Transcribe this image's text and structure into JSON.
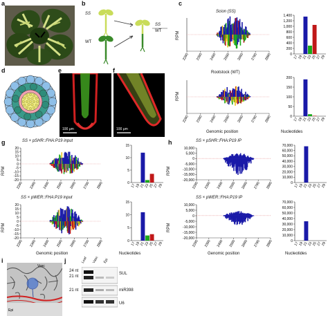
{
  "panels": {
    "a": "a",
    "b": "b",
    "c": "c",
    "d": "d",
    "e": "e",
    "f": "f",
    "g": "g",
    "h": "h",
    "i": "i",
    "j": "j"
  },
  "b": {
    "ss": "SS",
    "wt": "WT",
    "graft_top": "SS",
    "graft_bottom": "WT"
  },
  "c": {
    "title_top": "Scion (SS)",
    "title_bottom": "Rootstock (WT)",
    "xlabel": "Genomic position",
    "ylabel": "RPM",
    "hist_xlabel": "Nucleotides"
  },
  "e": {
    "scale": "100 μm"
  },
  "f": {
    "scale": "100 μm"
  },
  "g": {
    "title_top": "SS × pSHR::FHA:P19 input",
    "title_bottom": "SS × pWER::FHA:P19 input",
    "xlabel": "Genomic position",
    "ylabel": "RPM",
    "hist_xlabel": "Nucleotides"
  },
  "h": {
    "title_top": "SS × pSHR::FHA:P19 IP",
    "title_bottom": "SS × pWER::FHA:P19 IP",
    "xlabel": "Genomic position",
    "ylabel": "RPM",
    "hist_xlabel": "Nucleotides"
  },
  "i": {
    "vasc": "Vasc",
    "epi": "Epi"
  },
  "j": {
    "lanes": [
      "Leaf",
      "Vasc",
      "Epi"
    ],
    "size_24": "24 nt",
    "size_21": "21 nt",
    "size_21b": "21 nt",
    "probe1": "SUL",
    "probe2": "miR398",
    "probe3": "U6"
  },
  "chart_data": [
    {
      "type": "area",
      "title": "Scion (SS)",
      "xlabel": "Genomic position",
      "ylabel": "RPM",
      "xlim": [
        2290,
        2890
      ],
      "x_ticks": [
        2290,
        2390,
        2490,
        2590,
        2690,
        2790,
        2890
      ]
    },
    {
      "type": "bar",
      "categories": [
        "17",
        "19",
        "21",
        "23",
        "25",
        "27",
        "29"
      ],
      "series": [
        {
          "color": "#1a1aa8",
          "values": [
            0,
            0,
            1350,
            0,
            0,
            0,
            0
          ]
        },
        {
          "color": "#1aa81a",
          "values": [
            0,
            0,
            0,
            300,
            0,
            0,
            0
          ]
        },
        {
          "color": "#c01818",
          "values": [
            0,
            0,
            0,
            0,
            1050,
            0,
            0
          ]
        }
      ],
      "xlabel": "Nucleotides",
      "ylabel": "RPM",
      "ylim": [
        0,
        1400
      ],
      "y_ticks": [
        0,
        200,
        400,
        600,
        800,
        1000,
        1200,
        1400
      ]
    },
    {
      "type": "area",
      "title": "Rootstock (WT)",
      "xlabel": "Genomic position",
      "ylabel": "RPM",
      "xlim": [
        2290,
        2890
      ],
      "x_ticks": [
        2290,
        2390,
        2490,
        2590,
        2690,
        2790,
        2890
      ]
    },
    {
      "type": "bar",
      "categories": [
        "17",
        "19",
        "21",
        "23",
        "25",
        "27",
        "29"
      ],
      "series": [
        {
          "color": "#1a1aa8",
          "values": [
            0,
            0,
            190,
            0,
            0,
            0,
            0
          ]
        },
        {
          "color": "#1aa81a",
          "values": [
            0,
            0,
            0,
            10,
            0,
            0,
            0
          ]
        },
        {
          "color": "#c01818",
          "values": [
            0,
            0,
            0,
            0,
            2,
            0,
            0
          ]
        }
      ],
      "xlabel": "Nucleotides",
      "ylabel": "RPM",
      "ylim": [
        0,
        200
      ],
      "y_ticks": [
        0,
        50,
        100,
        150,
        200
      ]
    },
    {
      "type": "area",
      "title": "SS × pSHR::FHA:P19 input",
      "ylabel": "RPM",
      "ylim": [
        -20,
        20
      ],
      "y_ticks": [
        20,
        15,
        10,
        5,
        0,
        -5,
        -10,
        -15,
        -20
      ],
      "xlim": [
        2290,
        2890
      ],
      "x_ticks": [
        2290,
        2390,
        2490,
        2590,
        2690,
        2790,
        2890
      ]
    },
    {
      "type": "bar",
      "categories": [
        "17",
        "19",
        "21",
        "23",
        "25",
        "27",
        "29"
      ],
      "series": [
        {
          "color": "#1a1aa8",
          "values": [
            0,
            0,
            12,
            0,
            0,
            0,
            0
          ]
        },
        {
          "color": "#1aa81a",
          "values": [
            0,
            0,
            0,
            1,
            0,
            0,
            0
          ]
        },
        {
          "color": "#c01818",
          "values": [
            0,
            0,
            0,
            0,
            3.5,
            0,
            0
          ]
        }
      ],
      "xlabel": "Nucleotides",
      "ylabel": "RPM",
      "ylim": [
        0,
        15
      ],
      "y_ticks": [
        0,
        5,
        10,
        15
      ]
    },
    {
      "type": "area",
      "title": "SS × pWER::FHA:P19 input",
      "xlabel": "Genomic position",
      "ylabel": "RPM",
      "ylim": [
        -20,
        20
      ],
      "y_ticks": [
        20,
        15,
        10,
        5,
        0,
        -5,
        -10,
        -15,
        -20
      ],
      "xlim": [
        2290,
        2890
      ],
      "x_ticks": [
        2290,
        2390,
        2490,
        2590,
        2690,
        2790,
        2890
      ]
    },
    {
      "type": "bar",
      "categories": [
        "17",
        "19",
        "21",
        "23",
        "25",
        "27",
        "29"
      ],
      "series": [
        {
          "color": "#1a1aa8",
          "values": [
            0,
            0,
            11,
            0,
            0,
            0,
            0
          ]
        },
        {
          "color": "#1aa81a",
          "values": [
            0,
            0,
            0,
            2,
            0,
            0,
            0
          ]
        },
        {
          "color": "#c01818",
          "values": [
            0,
            0,
            0,
            0,
            2.5,
            0,
            0
          ]
        }
      ],
      "xlabel": "Nucleotides",
      "ylabel": "RPM",
      "ylim": [
        0,
        15
      ],
      "y_ticks": [
        0,
        5,
        10,
        15
      ]
    },
    {
      "type": "area",
      "title": "SS × pSHR::FHA:P19 IP",
      "ylabel": "RPM",
      "ylim": [
        -20000,
        10000
      ],
      "y_ticks": [
        10000,
        5000,
        0,
        -5000,
        -10000,
        -15000,
        -20000
      ],
      "xlim": [
        2290,
        2890
      ],
      "x_ticks": [
        2290,
        2390,
        2490,
        2590,
        2690,
        2790,
        2890
      ]
    },
    {
      "type": "bar",
      "categories": [
        "17",
        "19",
        "21",
        "23",
        "25",
        "27",
        "29"
      ],
      "series": [
        {
          "color": "#1a1aa8",
          "values": [
            0,
            0,
            68000,
            0,
            0,
            0,
            0
          ]
        },
        {
          "color": "#1aa81a",
          "values": [
            0,
            0,
            0,
            0,
            0,
            0,
            0
          ]
        },
        {
          "color": "#c01818",
          "values": [
            0,
            0,
            0,
            0,
            0,
            0,
            0
          ]
        }
      ],
      "xlabel": "Nucleotides",
      "ylabel": "RPM",
      "ylim": [
        0,
        70000
      ],
      "y_ticks": [
        0,
        10000,
        20000,
        30000,
        40000,
        50000,
        60000,
        70000
      ]
    },
    {
      "type": "area",
      "title": "SS × pWER::FHA:P19 IP",
      "xlabel": "Genomic position",
      "ylabel": "RPM",
      "ylim": [
        -20000,
        10000
      ],
      "y_ticks": [
        10000,
        5000,
        0,
        -5000,
        -10000,
        -15000,
        -20000
      ],
      "xlim": [
        2290,
        2890
      ],
      "x_ticks": [
        2290,
        2390,
        2490,
        2590,
        2690,
        2790,
        2890
      ]
    },
    {
      "type": "bar",
      "categories": [
        "17",
        "19",
        "21",
        "23",
        "25",
        "27",
        "29"
      ],
      "series": [
        {
          "color": "#1a1aa8",
          "values": [
            0,
            0,
            35000,
            0,
            0,
            0,
            0
          ]
        },
        {
          "color": "#1aa81a",
          "values": [
            0,
            0,
            0,
            0,
            0,
            0,
            0
          ]
        },
        {
          "color": "#c01818",
          "values": [
            0,
            0,
            0,
            0,
            0,
            0,
            0
          ]
        }
      ],
      "xlabel": "Nucleotides",
      "ylabel": "RPM",
      "ylim": [
        0,
        70000
      ],
      "y_ticks": [
        0,
        10000,
        20000,
        30000,
        40000,
        50000,
        60000,
        70000
      ]
    }
  ],
  "colors": {
    "blue": "#1a1aa8",
    "green": "#1aa81a",
    "red": "#c01818",
    "leaf_dark": "#2f4a1a",
    "leaf_light": "#c9d87a"
  }
}
